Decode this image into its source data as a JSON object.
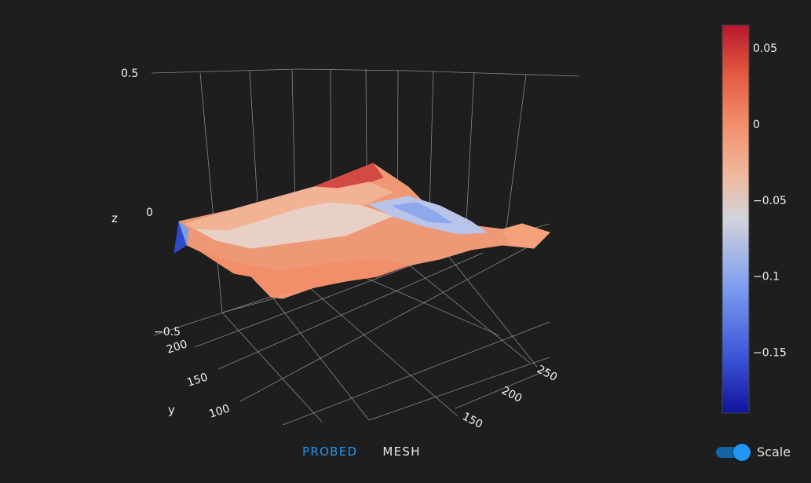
{
  "chart_data": {
    "type": "surface",
    "title": "",
    "xlabel": "",
    "ylabel": "y",
    "zlabel": "z",
    "x_ticks": [
      150,
      200,
      250
    ],
    "y_ticks": [
      100,
      150,
      200
    ],
    "z_ticks": [
      "−0.5",
      "0",
      "0.5"
    ],
    "zlim": [
      -0.5,
      0.5
    ],
    "colorscale": [
      "#11139b",
      "#3a53d6",
      "#6d8ff2",
      "#a7bdf5",
      "#d9d9d9",
      "#f0b79a",
      "#f28c69",
      "#e2573f",
      "#b8162b"
    ],
    "colorbar": {
      "min": -0.19,
      "max": 0.065,
      "ticks": [
        {
          "v": 0.05,
          "label": "0.05"
        },
        {
          "v": 0,
          "label": "0"
        },
        {
          "v": -0.05,
          "label": "−0.05"
        },
        {
          "v": -0.1,
          "label": "−0.1"
        },
        {
          "v": -0.15,
          "label": "−0.15"
        }
      ]
    },
    "rows_y": [
      100,
      150,
      200,
      240
    ],
    "cols_x": [
      0,
      50,
      100,
      150,
      200,
      250,
      280
    ],
    "z_values": [
      [
        -0.19,
        0.0,
        0.0,
        0.0,
        0.0,
        0.0,
        0.01
      ],
      [
        -0.01,
        -0.02,
        -0.04,
        -0.06,
        -0.05,
        0.0,
        0.01
      ],
      [
        0.0,
        -0.01,
        -0.03,
        -0.11,
        -0.08,
        0.0,
        0.02
      ],
      [
        0.0,
        0.01,
        0.02,
        0.06,
        -0.02,
        -0.01,
        0.03
      ]
    ]
  },
  "tabs": {
    "probed": "PROBED",
    "mesh": "MESH"
  },
  "toggle": {
    "label": "Scale",
    "on": true
  }
}
